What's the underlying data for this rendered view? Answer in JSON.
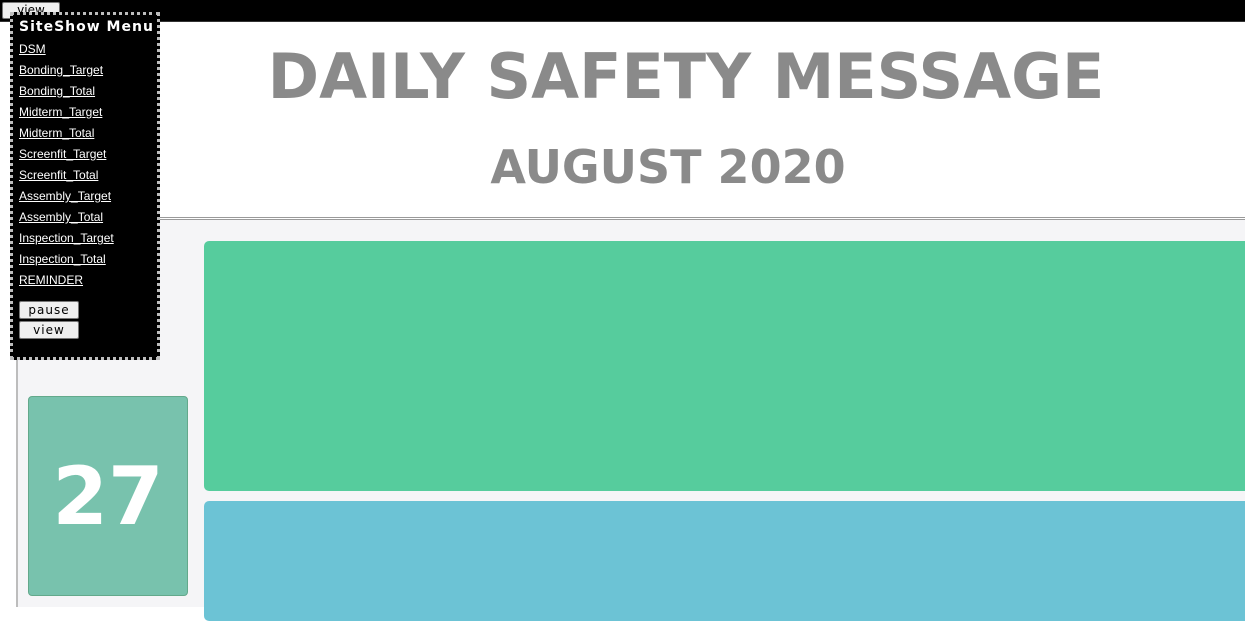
{
  "topbar": {
    "view_label": "view"
  },
  "header": {
    "title": "DAILY SAFETY MESSAGE",
    "subtitle": "AUGUST 2020"
  },
  "day": {
    "number": "27"
  },
  "colors": {
    "panel_green": "#56cc9d",
    "panel_blue": "#6cc3d5",
    "day_box": "#78c2ad"
  },
  "menu": {
    "title": "SiteShow Menu",
    "items": [
      {
        "label": "DSM"
      },
      {
        "label": "Bonding_Target"
      },
      {
        "label": "Bonding_Total"
      },
      {
        "label": "Midterm_Target"
      },
      {
        "label": "Midterm_Total"
      },
      {
        "label": "Screenfit_Target"
      },
      {
        "label": "Screenfit_Total"
      },
      {
        "label": "Assembly_Target"
      },
      {
        "label": "Assembly_Total"
      },
      {
        "label": "Inspection_Target"
      },
      {
        "label": "Inspection_Total"
      },
      {
        "label": "REMINDER"
      }
    ],
    "pause_label": "pause",
    "view_label": "view"
  }
}
